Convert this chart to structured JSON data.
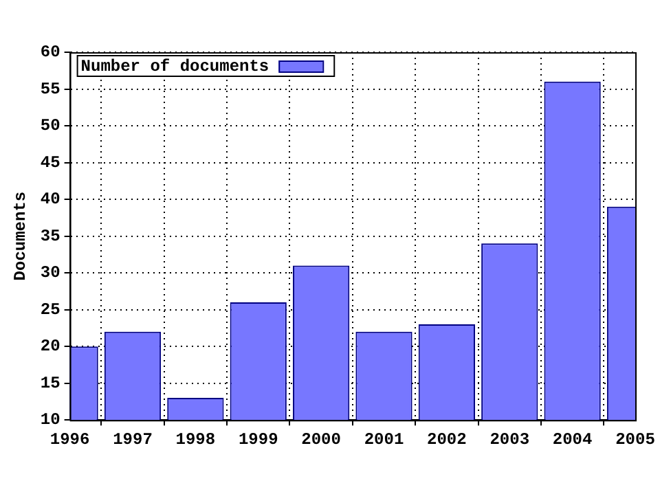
{
  "chart_data": {
    "type": "bar",
    "ylabel": "Documents",
    "x": [
      1996,
      1997,
      1998,
      1999,
      2000,
      2001,
      2002,
      2003,
      2004,
      2005
    ],
    "series": [
      {
        "name": "Number of documents",
        "color": "#7777ff",
        "values": [
          20,
          22,
          13,
          26,
          31,
          22,
          23,
          34,
          56,
          39
        ]
      }
    ],
    "xlim": [
      1996,
      2005
    ],
    "xticks": [
      1996,
      1997,
      1998,
      1999,
      2000,
      2001,
      2002,
      2003,
      2004,
      2005
    ],
    "ylim": [
      10,
      60
    ],
    "yticks": [
      10,
      15,
      20,
      25,
      30,
      35,
      40,
      45,
      50,
      55,
      60
    ],
    "grid": true,
    "legend": "top left"
  }
}
